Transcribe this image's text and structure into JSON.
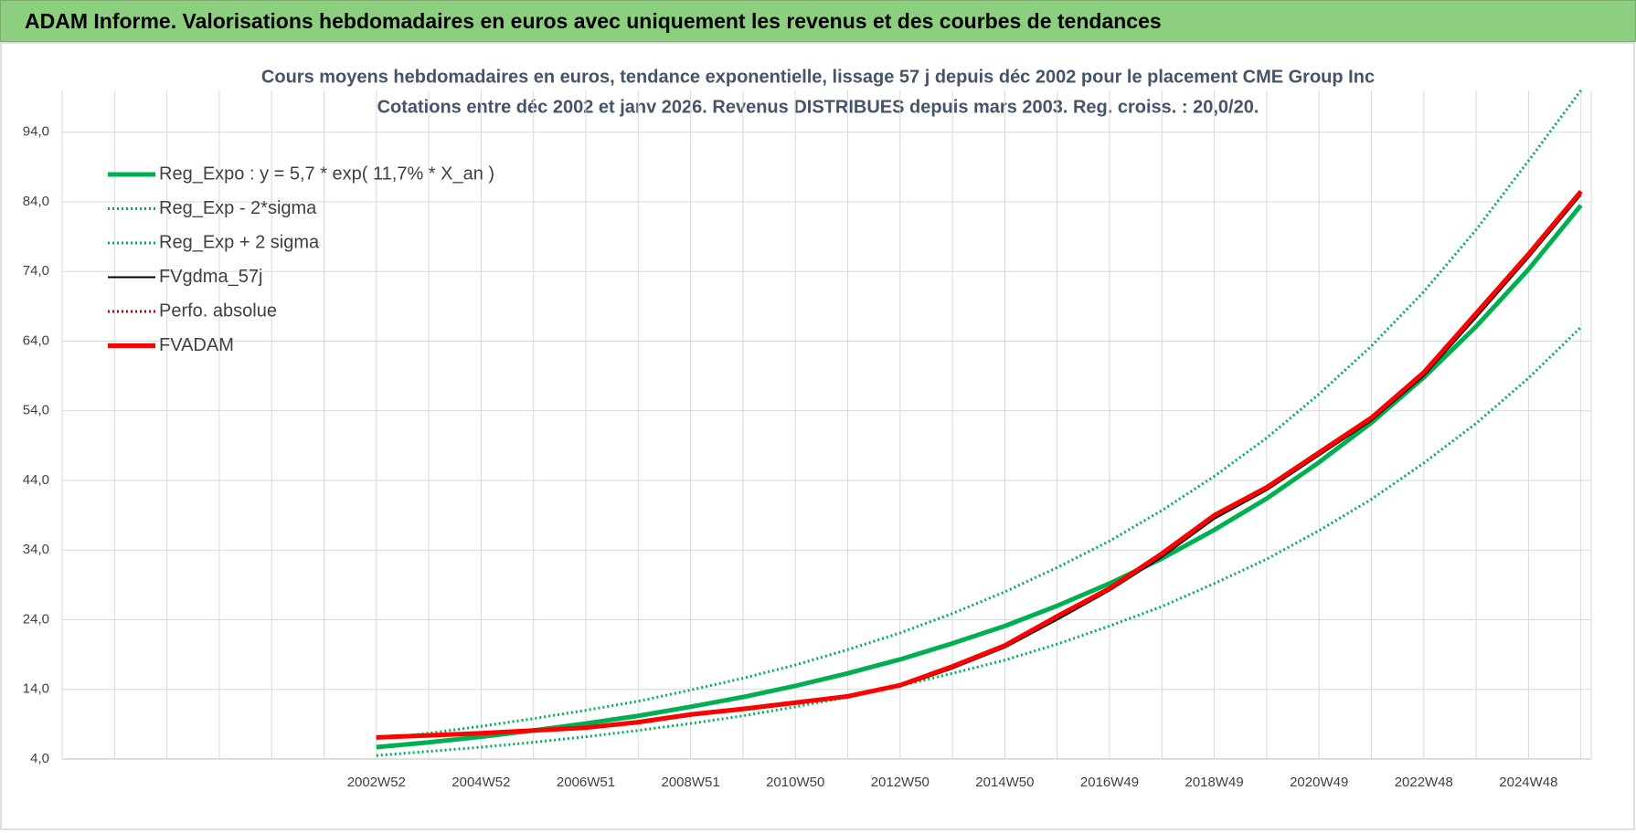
{
  "header": {
    "title": "ADAM Informe. Valorisations hebdomadaires en euros avec uniquement les revenus et des courbes de tendances"
  },
  "chart_data": {
    "type": "line",
    "title": "Cours moyens hebdomadaires en euros, tendance exponentielle, lissage 57 j depuis déc 2002 pour le placement CME Group Inc",
    "subtitle": "Cotations entre déc 2002 et janv 2026.  Revenus DISTRIBUES depuis mars 2003. Reg. croiss. : 20,0/20.",
    "categories": [
      null,
      null,
      null,
      null,
      null,
      null,
      "2002W52",
      null,
      "2004W52",
      null,
      "2006W51",
      null,
      "2008W51",
      null,
      "2010W50",
      null,
      "2012W50",
      null,
      "2014W50",
      null,
      "2016W49",
      null,
      "2018W49",
      null,
      "2020W49",
      null,
      "2022W48",
      null,
      "2024W48",
      null
    ],
    "ylim": [
      4,
      100
    ],
    "yticks": [
      {
        "value": 4,
        "label": "4,0"
      },
      {
        "value": 14,
        "label": "14,0"
      },
      {
        "value": 24,
        "label": "24,0"
      },
      {
        "value": 34,
        "label": "34,0"
      },
      {
        "value": 44,
        "label": "44,0"
      },
      {
        "value": 54,
        "label": "54,0"
      },
      {
        "value": 64,
        "label": "64,0"
      },
      {
        "value": 74,
        "label": "74,0"
      },
      {
        "value": 84,
        "label": "84,0"
      },
      {
        "value": 94,
        "label": "94,0"
      }
    ],
    "grid": true,
    "legend": "top-left",
    "series": [
      {
        "name": "Reg_Expo : y = 5,7 * exp( 11,7% *  X_an )",
        "color": "#00b050",
        "line_style": "thick",
        "values": [
          null,
          null,
          null,
          null,
          null,
          null,
          5.7,
          6.4,
          7.2,
          8.1,
          9.1,
          10.2,
          11.5,
          12.9,
          14.5,
          16.3,
          18.3,
          20.6,
          23.1,
          26.0,
          29.2,
          32.8,
          36.9,
          41.4,
          46.6,
          52.3,
          58.8,
          66.1,
          74.3,
          83.5
        ]
      },
      {
        "name": "Reg_Exp - 2*sigma",
        "color": "#00b050",
        "line_style": "dotted",
        "values": [
          null,
          null,
          null,
          null,
          null,
          null,
          4.5,
          5.1,
          5.7,
          6.4,
          7.2,
          8.1,
          9.1,
          10.2,
          11.5,
          12.9,
          14.5,
          16.3,
          18.2,
          20.5,
          23.1,
          25.9,
          29.2,
          32.7,
          36.8,
          41.3,
          46.5,
          52.2,
          58.7,
          66.0
        ]
      },
      {
        "name": "Reg_Exp + 2 sigma",
        "color": "#00b050",
        "line_style": "dotted",
        "values": [
          null,
          null,
          null,
          null,
          null,
          null,
          6.9,
          7.7,
          8.7,
          9.8,
          11.0,
          12.3,
          13.9,
          15.6,
          17.5,
          19.7,
          22.1,
          24.9,
          28.0,
          31.5,
          35.3,
          39.7,
          44.6,
          50.1,
          56.4,
          63.3,
          71.1,
          80.0,
          89.9,
          100
        ]
      },
      {
        "name": "FVgdma_57j",
        "color": "#000000",
        "line_style": "solid",
        "values": [
          null,
          null,
          null,
          null,
          null,
          null,
          7.0,
          7.3,
          7.6,
          8.0,
          8.4,
          9.1,
          10.2,
          11.0,
          11.9,
          12.9,
          14.4,
          17.0,
          20.0,
          24.0,
          28.2,
          33.0,
          38.5,
          42.6,
          47.6,
          52.6,
          59.0,
          67.4,
          76.0,
          85.0
        ]
      },
      {
        "name": "Perfo. absolue",
        "color": "#c00000",
        "line_style": "dotted",
        "values": [
          null,
          null,
          null,
          null,
          null,
          null,
          7.1,
          7.4,
          7.7,
          8.1,
          8.5,
          9.3,
          10.4,
          11.2,
          12.1,
          13.0,
          14.6,
          17.3,
          20.3,
          24.5,
          28.5,
          33.5,
          39.0,
          43.0,
          48.0,
          53.0,
          59.5,
          68.0,
          76.5,
          85.5
        ]
      },
      {
        "name": "FVADAM",
        "color": "#ff0000",
        "line_style": "thick",
        "values": [
          null,
          null,
          null,
          null,
          null,
          null,
          7.1,
          7.4,
          7.7,
          8.1,
          8.5,
          9.3,
          10.4,
          11.2,
          12.1,
          13.0,
          14.6,
          17.3,
          20.3,
          24.5,
          28.5,
          33.5,
          39.0,
          43.0,
          48.0,
          53.0,
          59.5,
          68.0,
          76.5,
          85.5
        ]
      }
    ]
  }
}
